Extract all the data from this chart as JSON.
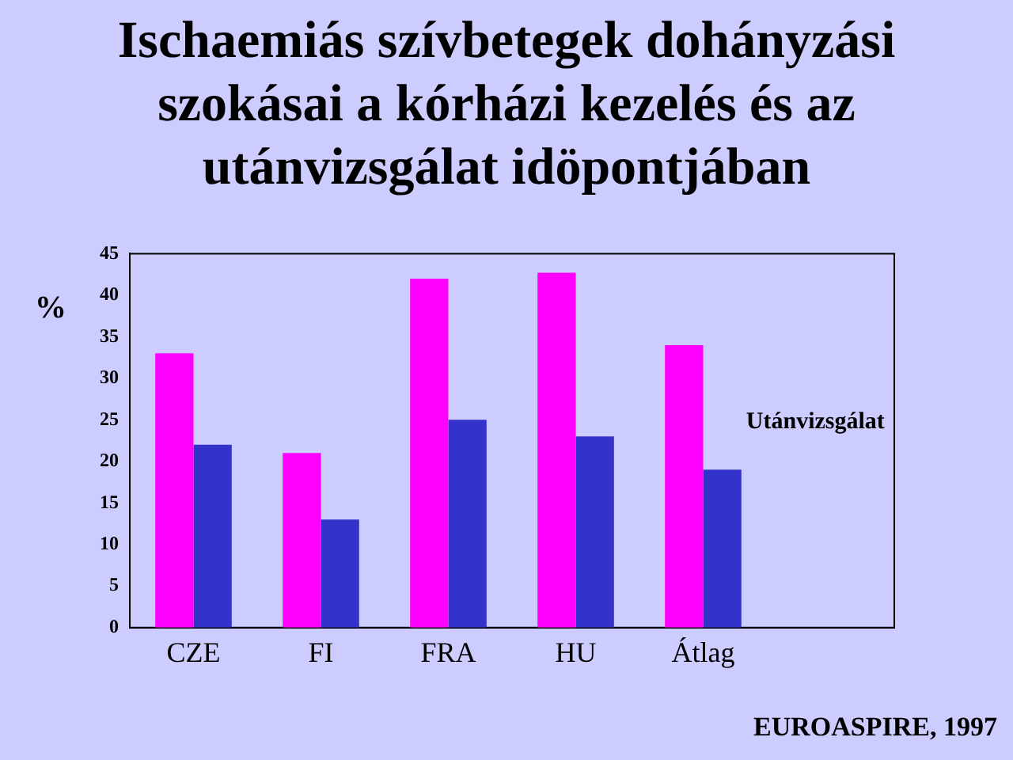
{
  "chart_data": {
    "type": "bar",
    "title": "Ischaemiás szívbetegek dohányzási szokásai a kórházi kezelés és az utánvizsgálat idöpontjában",
    "ylabel": "%",
    "categories": [
      "CZE",
      "FI",
      "FRA",
      "HU",
      "Átlag",
      null
    ],
    "series": [
      {
        "color": "#ff00ff",
        "values": [
          33,
          21,
          42,
          42.7,
          34,
          null
        ]
      },
      {
        "name": "Utánvizsgálat",
        "color": "#3333cc",
        "values": [
          22,
          13,
          25,
          23,
          19,
          null
        ]
      }
    ],
    "ylim": [
      0,
      45
    ],
    "yticks": [
      0,
      5,
      10,
      15,
      20,
      25,
      30,
      35,
      40,
      45
    ],
    "grid": false,
    "legend": false,
    "annotations": [
      "EUROASPIRE, 1997"
    ]
  }
}
